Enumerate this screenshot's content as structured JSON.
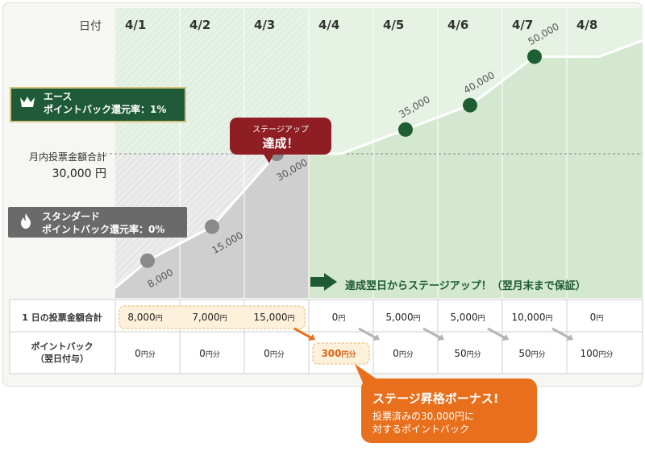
{
  "header_label": "日付",
  "monthly_total_label": "月内投票金額合計",
  "threshold_value_label": "30,000 円",
  "ranks": {
    "ace": {
      "name": "エース",
      "rate": "ポイントバック還元率：1%"
    },
    "standard": {
      "name": "スタンダード",
      "rate": "ポイントバック還元率：0%"
    }
  },
  "achieve_bubble": {
    "small": "ステージアップ",
    "big": "達成！"
  },
  "stage_up_message": "達成翌日からステージアップ！（翌月末まで保証）",
  "bonus_bubble": {
    "title": "ステージ昇格ボーナス!",
    "line1": "投票済みの30,000円に",
    "line2": "対するポイントバック"
  },
  "table": {
    "row1_label": "1 日の投票金額合計",
    "row2_label_line1": "ポイントバック",
    "row2_label_line2": "（翌日付与）",
    "yen_unit": "円",
    "pts_unit": "円分",
    "daily": [
      "8,000",
      "7,000",
      "15,000",
      "0",
      "5,000",
      "5,000",
      "10,000",
      "0"
    ],
    "points": [
      "0",
      "0",
      "0",
      "300",
      "0",
      "50",
      "50",
      "100"
    ]
  },
  "colors": {
    "ace_green": "#1f5b38",
    "dot_green": "#1e5e32",
    "stage_gray": "#8a8a8a",
    "achieve_red": "#8e1e24",
    "bonus_orange": "#e8701d"
  },
  "chart_data": {
    "type": "line",
    "categories": [
      "4/1",
      "4/2",
      "4/3",
      "4/4",
      "4/5",
      "4/6",
      "4/7",
      "4/8"
    ],
    "series": [
      {
        "values": [
          8000,
          15000,
          30000,
          30000,
          35000,
          40000,
          50000,
          50000
        ]
      }
    ],
    "point_labels": [
      "8,000",
      "15,000",
      "30,000",
      "35,000",
      "40,000",
      "50,000"
    ],
    "threshold": 30000,
    "ylim": [
      0,
      60000
    ]
  }
}
